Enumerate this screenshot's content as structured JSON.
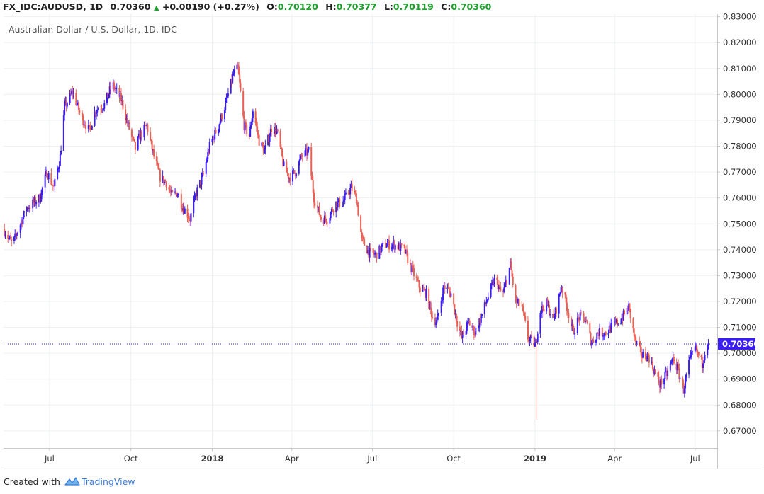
{
  "header": {
    "symbol": "FX_IDC:AUDUSD, 1D",
    "last": "0.70360",
    "change": "+0.00190 (+0.27%)",
    "o_label": "O:",
    "o_value": "0.70120",
    "h_label": "H:",
    "h_value": "0.70377",
    "l_label": "L:",
    "l_value": "0.70119",
    "c_label": "C:",
    "c_value": "0.70360",
    "up_color": "#1fa030"
  },
  "footer": {
    "created_with": "Created with",
    "brand": "TradingView",
    "logo_icon": "tradingview-logo-icon"
  },
  "chart_data": {
    "type": "candlestick",
    "title": "Australian Dollar / U.S. Dollar, 1D, IDC",
    "y_ticks": [
      "0.83000",
      "0.82000",
      "0.81000",
      "0.80000",
      "0.79000",
      "0.78000",
      "0.77000",
      "0.76000",
      "0.75000",
      "0.74000",
      "0.73000",
      "0.72000",
      "0.71000",
      "0.70000",
      "0.69000",
      "0.68000",
      "0.67000"
    ],
    "ylim": [
      0.6634,
      0.831
    ],
    "x_ticks": [
      {
        "label": "Jul",
        "date": "2017-07-01",
        "bold": false
      },
      {
        "label": "Oct",
        "date": "2017-10-01",
        "bold": false
      },
      {
        "label": "2018",
        "date": "2018-01-01",
        "bold": true
      },
      {
        "label": "Apr",
        "date": "2018-04-01",
        "bold": false
      },
      {
        "label": "Jul",
        "date": "2018-07-01",
        "bold": false
      },
      {
        "label": "Oct",
        "date": "2018-10-01",
        "bold": false
      },
      {
        "label": "2019",
        "date": "2019-01-01",
        "bold": true
      },
      {
        "label": "Apr",
        "date": "2019-04-01",
        "bold": false
      },
      {
        "label": "Jul",
        "date": "2019-07-01",
        "bold": false
      }
    ],
    "x_range": [
      "2017-05-10",
      "2019-07-26"
    ],
    "current_price": 0.7036,
    "current_price_label": "0.70360",
    "up_color": "#3a1df0",
    "down_color": "#e86055",
    "price_line_color": "#3a1df0",
    "grid": true,
    "close_path": [
      [
        "2017-05-10",
        0.748
      ],
      [
        "2017-05-20",
        0.742
      ],
      [
        "2017-06-05",
        0.756
      ],
      [
        "2017-06-20",
        0.76
      ],
      [
        "2017-06-28",
        0.77
      ],
      [
        "2017-07-06",
        0.764
      ],
      [
        "2017-07-13",
        0.776
      ],
      [
        "2017-07-18",
        0.795
      ],
      [
        "2017-07-27",
        0.801
      ],
      [
        "2017-08-05",
        0.792
      ],
      [
        "2017-08-15",
        0.786
      ],
      [
        "2017-08-22",
        0.794
      ],
      [
        "2017-09-01",
        0.796
      ],
      [
        "2017-09-10",
        0.804
      ],
      [
        "2017-09-20",
        0.798
      ],
      [
        "2017-09-27",
        0.789
      ],
      [
        "2017-10-06",
        0.779
      ],
      [
        "2017-10-11",
        0.784
      ],
      [
        "2017-10-19",
        0.788
      ],
      [
        "2017-10-27",
        0.776
      ],
      [
        "2017-11-03",
        0.768
      ],
      [
        "2017-11-10",
        0.766
      ],
      [
        "2017-11-16",
        0.761
      ],
      [
        "2017-11-23",
        0.762
      ],
      [
        "2017-11-28",
        0.757
      ],
      [
        "2017-12-07",
        0.752
      ],
      [
        "2017-12-14",
        0.762
      ],
      [
        "2017-12-22",
        0.769
      ],
      [
        "2017-12-29",
        0.78
      ],
      [
        "2018-01-08",
        0.788
      ],
      [
        "2018-01-16",
        0.796
      ],
      [
        "2018-01-25",
        0.808
      ],
      [
        "2018-01-30",
        0.81
      ],
      [
        "2018-02-06",
        0.788
      ],
      [
        "2018-02-12",
        0.784
      ],
      [
        "2018-02-16",
        0.794
      ],
      [
        "2018-02-23",
        0.782
      ],
      [
        "2018-03-01",
        0.778
      ],
      [
        "2018-03-09",
        0.787
      ],
      [
        "2018-03-15",
        0.786
      ],
      [
        "2018-03-23",
        0.772
      ],
      [
        "2018-03-29",
        0.768
      ],
      [
        "2018-04-05",
        0.77
      ],
      [
        "2018-04-12",
        0.776
      ],
      [
        "2018-04-20",
        0.778
      ],
      [
        "2018-04-26",
        0.76
      ],
      [
        "2018-05-04",
        0.752
      ],
      [
        "2018-05-12",
        0.752
      ],
      [
        "2018-05-20",
        0.758
      ],
      [
        "2018-05-28",
        0.758
      ],
      [
        "2018-06-07",
        0.764
      ],
      [
        "2018-06-13",
        0.76
      ],
      [
        "2018-06-19",
        0.744
      ],
      [
        "2018-06-27",
        0.739
      ],
      [
        "2018-07-05",
        0.738
      ],
      [
        "2018-07-15",
        0.742
      ],
      [
        "2018-07-25",
        0.742
      ],
      [
        "2018-08-06",
        0.74
      ],
      [
        "2018-08-15",
        0.732
      ],
      [
        "2018-08-24",
        0.725
      ],
      [
        "2018-08-31",
        0.723
      ],
      [
        "2018-09-07",
        0.714
      ],
      [
        "2018-09-12",
        0.712
      ],
      [
        "2018-09-20",
        0.726
      ],
      [
        "2018-09-28",
        0.723
      ],
      [
        "2018-10-05",
        0.712
      ],
      [
        "2018-10-10",
        0.706
      ],
      [
        "2018-10-18",
        0.712
      ],
      [
        "2018-10-25",
        0.708
      ],
      [
        "2018-11-02",
        0.715
      ],
      [
        "2018-11-10",
        0.723
      ],
      [
        "2018-11-17",
        0.729
      ],
      [
        "2018-11-25",
        0.722
      ],
      [
        "2018-12-04",
        0.734
      ],
      [
        "2018-12-10",
        0.72
      ],
      [
        "2018-12-17",
        0.718
      ],
      [
        "2018-12-24",
        0.706
      ],
      [
        "2019-01-02",
        0.703
      ],
      [
        "2019-01-06",
        0.716
      ],
      [
        "2019-01-14",
        0.719
      ],
      [
        "2019-01-22",
        0.713
      ],
      [
        "2019-01-31",
        0.726
      ],
      [
        "2019-02-06",
        0.718
      ],
      [
        "2019-02-13",
        0.708
      ],
      [
        "2019-02-20",
        0.714
      ],
      [
        "2019-02-27",
        0.713
      ],
      [
        "2019-03-06",
        0.704
      ],
      [
        "2019-03-13",
        0.708
      ],
      [
        "2019-03-22",
        0.708
      ],
      [
        "2019-03-28",
        0.71
      ],
      [
        "2019-04-08",
        0.713
      ],
      [
        "2019-04-17",
        0.718
      ],
      [
        "2019-04-24",
        0.705
      ],
      [
        "2019-05-02",
        0.699
      ],
      [
        "2019-05-09",
        0.699
      ],
      [
        "2019-05-16",
        0.693
      ],
      [
        "2019-05-22",
        0.688
      ],
      [
        "2019-05-30",
        0.692
      ],
      [
        "2019-06-06",
        0.698
      ],
      [
        "2019-06-11",
        0.694
      ],
      [
        "2019-06-18",
        0.686
      ],
      [
        "2019-06-24",
        0.696
      ],
      [
        "2019-07-01",
        0.702
      ],
      [
        "2019-07-05",
        0.699
      ],
      [
        "2019-07-09",
        0.696
      ],
      [
        "2019-07-12",
        0.701
      ],
      [
        "2019-07-16",
        0.7036
      ]
    ],
    "spike_low": {
      "date": "2019-01-03",
      "value": 0.6745
    }
  }
}
